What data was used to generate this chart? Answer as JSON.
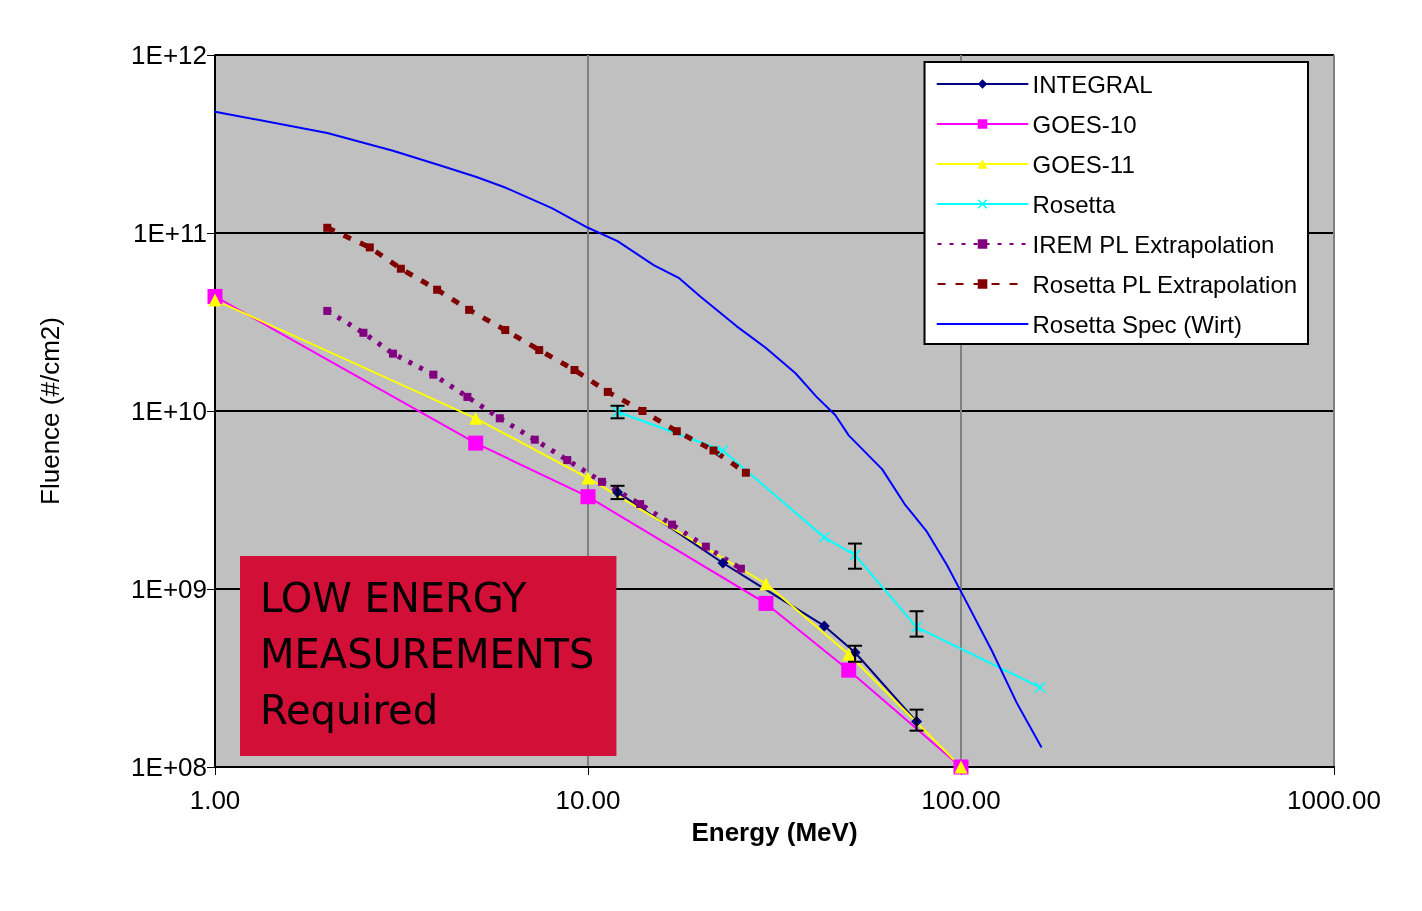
{
  "chart_data": {
    "type": "line",
    "xlabel": "Energy (MeV)",
    "ylabel": "Fluence (#/cm2)",
    "log": "xy",
    "grid": true,
    "legend": "top right",
    "xlim": [
      1,
      1000
    ],
    "xticks": [
      {
        "value": 1,
        "label": "1.00"
      },
      {
        "value": 10,
        "label": "10.00"
      },
      {
        "value": 100,
        "label": "100.00"
      },
      {
        "value": 1000,
        "label": "1000.00"
      }
    ],
    "ylim": [
      100000000.0,
      1000000000000.0
    ],
    "yticks": [
      {
        "value": 100000000.0,
        "label": "1E+08"
      },
      {
        "value": 1000000000.0,
        "label": "1E+09"
      },
      {
        "value": 10000000000.0,
        "label": "1E+10"
      },
      {
        "value": 100000000000.0,
        "label": "1E+11"
      },
      {
        "value": 1000000000000.0,
        "label": "1E+12"
      }
    ],
    "annotations": [
      "LOW ENERGY\nMEASUREMENTS\nRequired"
    ],
    "series": [
      {
        "name": "INTEGRAL",
        "color": "#000080",
        "marker": "diamond",
        "x": [
          12,
          23,
          43,
          52,
          76
        ],
        "values": [
          3500000000.0,
          1400000000.0,
          620000000.0,
          440000000.0,
          180000000.0
        ],
        "errors": [
          [
            3200000000.0,
            3800000000.0
          ],
          null,
          null,
          [
            390000000.0,
            480000000.0
          ],
          [
            160000000.0,
            210000000.0
          ]
        ]
      },
      {
        "name": "GOES-10",
        "color": "#ff00ff",
        "marker": "square",
        "x": [
          1,
          5,
          10,
          30,
          50,
          100
        ],
        "values": [
          44000000000.0,
          6600000000.0,
          3300000000.0,
          830000000.0,
          350000000.0,
          100000000.0
        ]
      },
      {
        "name": "GOES-11",
        "color": "#ffff00",
        "marker": "triangle",
        "x": [
          1,
          5,
          10,
          30,
          50,
          100
        ],
        "values": [
          42000000000.0,
          9100000000.0,
          4200000000.0,
          1070000000.0,
          430000000.0,
          100000000.0
        ]
      },
      {
        "name": "Rosetta",
        "color": "#00ffff",
        "marker": "cross",
        "x": [
          12,
          23,
          43,
          52,
          76,
          163
        ],
        "values": [
          9900000000.0,
          6000000000.0,
          1950000000.0,
          1550000000.0,
          610000000.0,
          280000000.0
        ],
        "errors": [
          [
            9100000000.0,
            10700000000.0
          ],
          null,
          null,
          [
            1300000000.0,
            1800000000.0
          ],
          [
            540000000.0,
            750000000.0
          ],
          null
        ]
      },
      {
        "name": "IREM PL Extrapolation",
        "color": "#800080",
        "marker": "square",
        "line_style": "dotted",
        "x": [
          2,
          2.5,
          3,
          3.85,
          4.75,
          5.8,
          7.2,
          8.8,
          10.9,
          13.8,
          16.8,
          20.7,
          25.7
        ],
        "values": [
          36500000000.0,
          27500000000.0,
          21000000000.0,
          16000000000.0,
          12000000000.0,
          9100000000.0,
          6900000000.0,
          5300000000.0,
          4000000000.0,
          3000000000.0,
          2300000000.0,
          1730000000.0,
          1300000000.0
        ]
      },
      {
        "name": "Rosetta PL Extrapolation",
        "color": "#800000",
        "marker": "square",
        "line_style": "dashed",
        "x": [
          2,
          2.6,
          3.15,
          3.94,
          4.8,
          6,
          7.4,
          9.2,
          11.3,
          14,
          17.3,
          21.7,
          26.5
        ],
        "values": [
          107000000000.0,
          83000000000.0,
          63000000000.0,
          48000000000.0,
          37000000000.0,
          28500000000.0,
          22000000000.0,
          17000000000.0,
          12800000000.0,
          10000000000.0,
          7700000000.0,
          6000000000.0,
          4500000000.0
        ]
      },
      {
        "name": "Rosetta Spec (Wirt)",
        "color": "#0000ff",
        "marker": "none",
        "x": [
          1,
          2,
          3,
          4,
          5,
          6,
          8,
          10,
          12,
          15,
          17.5,
          20,
          25,
          30,
          36,
          41,
          46,
          50,
          61.5,
          70.6,
          81,
          91.6,
          101,
          121,
          141,
          164
        ],
        "values": [
          480000000000.0,
          365000000000.0,
          290000000000.0,
          240000000000.0,
          207000000000.0,
          180000000000.0,
          138000000000.0,
          107000000000.0,
          90000000000.0,
          66000000000.0,
          56000000000.0,
          44000000000.0,
          30000000000.0,
          22600000000.0,
          16300000000.0,
          12000000000.0,
          9500000000.0,
          7300000000.0,
          4700000000.0,
          3000000000.0,
          2100000000.0,
          1370000000.0,
          930000000.0,
          450000000.0,
          230000000.0,
          130000000.0
        ]
      }
    ]
  }
}
